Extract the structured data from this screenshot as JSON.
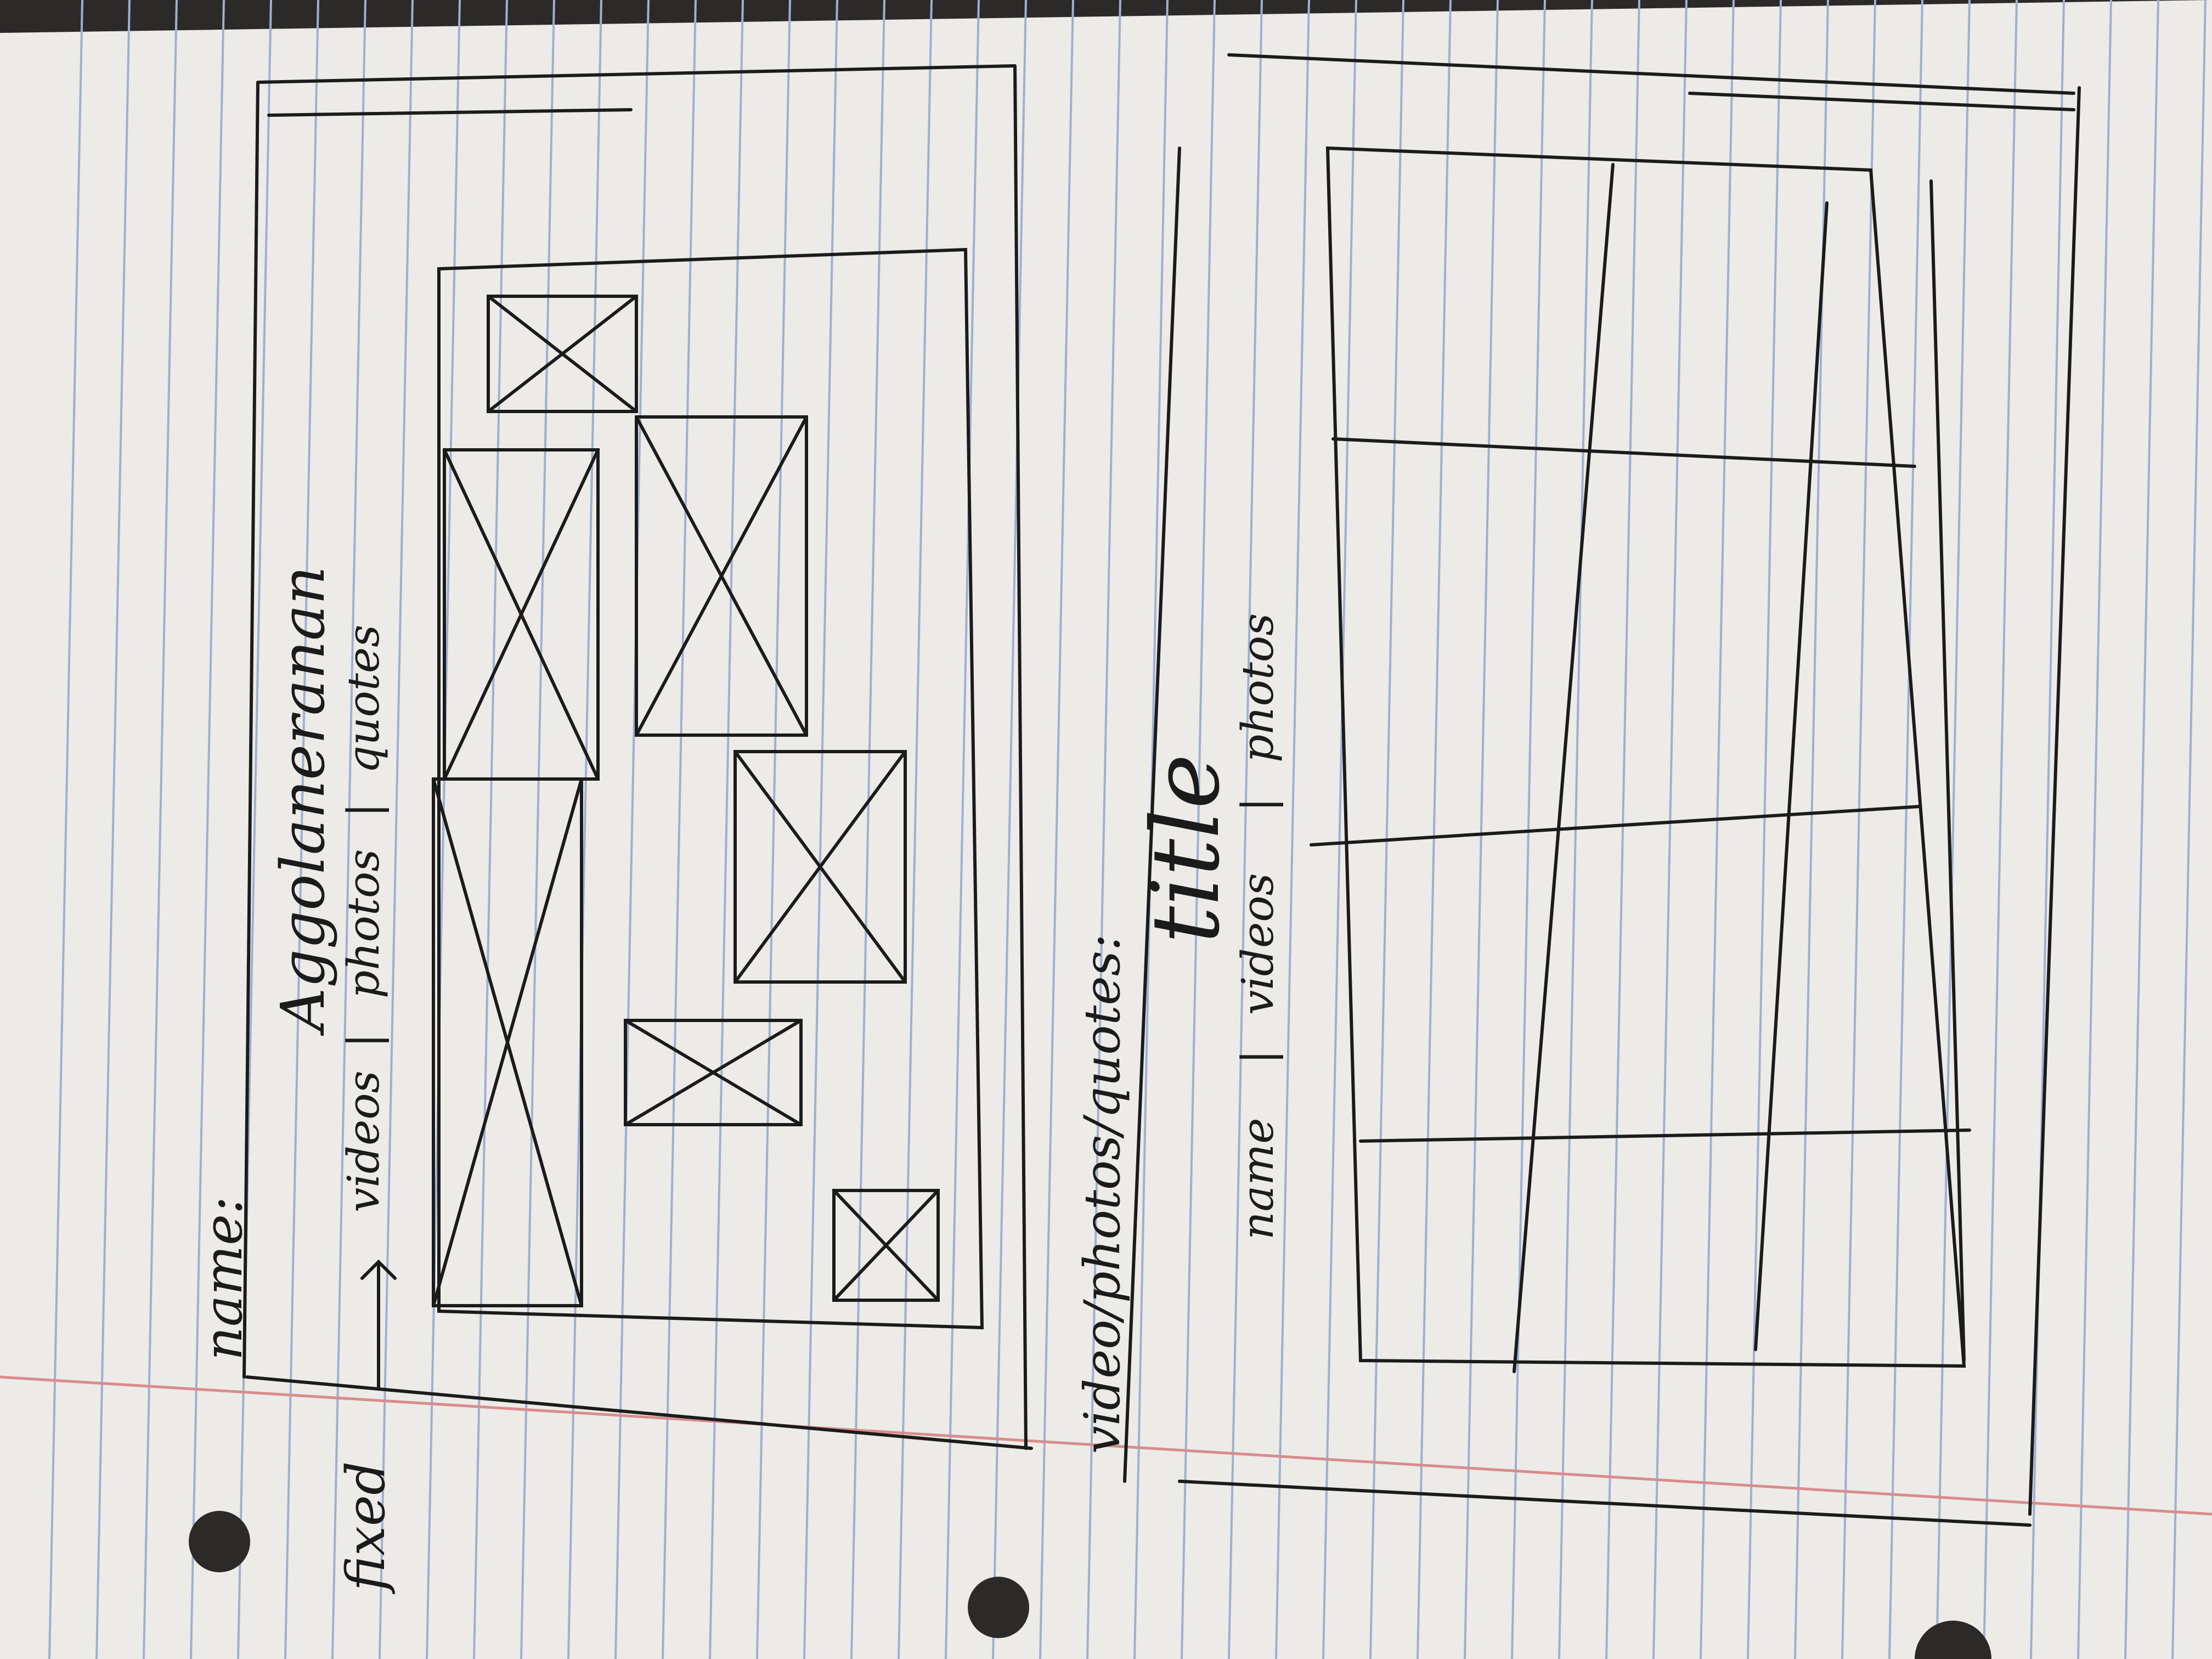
{
  "colors": {
    "paper": "#ecebe8",
    "rule_line": "#9fb0cf",
    "margin_line": "#d98c8c",
    "ink": "#1b1b1b",
    "background": "#2b2a28"
  },
  "sketch_top": {
    "label_name": "name:",
    "label_fixed": "fixed",
    "arrow_icon": "right-arrow-icon",
    "heading": "Aggolaneranan",
    "nav_videos": "videos",
    "nav_photos": "photos",
    "nav_quotes": "quotes",
    "separator": "|"
  },
  "sketch_bottom": {
    "label_page": "video/photos/quotes:",
    "title": "title",
    "nav_name": "name",
    "nav_videos": "videos",
    "nav_photos": "photos",
    "separator": "|"
  }
}
